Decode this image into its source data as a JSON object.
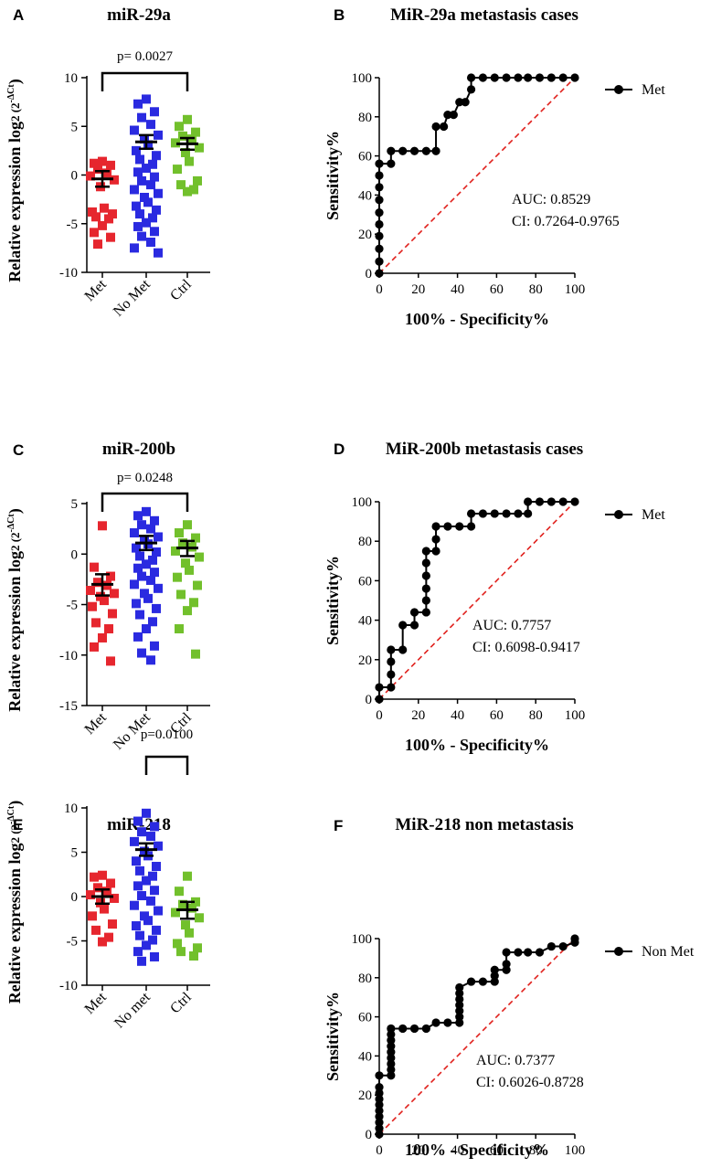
{
  "chart_data": [
    {
      "panel": "A",
      "type": "scatter",
      "title": "miR-29a",
      "ylabel": "Relative expression log",
      "ylabel_sup": "2 (2",
      "ylabel_sup2": "-ΔCt",
      "ylabel_end": ")",
      "ylim": [
        -10,
        10
      ],
      "yticks": [
        "-10",
        "-5",
        "0",
        "5",
        "10"
      ],
      "categories": [
        "Met",
        "No Met",
        "Ctrl"
      ],
      "colors": [
        "#e6262e",
        "#2a2ae0",
        "#72c02c"
      ],
      "means": [
        -0.4,
        3.4,
        3.2
      ],
      "sem_low": [
        -1.2,
        2.7,
        2.6
      ],
      "sem_high": [
        0.4,
        4.1,
        3.8
      ],
      "points": [
        [
          1.4,
          1.2,
          1.0,
          0.6,
          0.2,
          -0.1,
          -0.5,
          -1.2,
          -3.4,
          -3.8,
          -4.0,
          -4.3,
          -4.5,
          -5.2,
          -5.9,
          -6.4,
          -7.1
        ],
        [
          7.8,
          7.3,
          6.5,
          5.9,
          5.2,
          4.6,
          4.1,
          3.7,
          3.1,
          2.5,
          2.0,
          1.6,
          1.1,
          0.7,
          0.3,
          -0.2,
          -0.6,
          -1.0,
          -1.5,
          -1.9,
          -2.3,
          -2.8,
          -3.2,
          -3.6,
          -4.0,
          -4.4,
          -4.9,
          -5.3,
          -5.8,
          -6.3,
          -6.9,
          -7.5,
          -8.0
        ],
        [
          5.7,
          5.0,
          4.4,
          4.0,
          3.7,
          3.3,
          2.8,
          2.3,
          1.4,
          0.6,
          -0.6,
          -1.0,
          -1.5,
          -1.7
        ]
      ],
      "significance": {
        "label": "p= 0.0027",
        "from": 0,
        "to": 2
      }
    },
    {
      "panel": "B",
      "type": "line",
      "title": "MiR-29a metastasis cases",
      "xlabel": "100% - Specificity%",
      "ylabel": "Sensitivity%",
      "xlim": [
        0,
        100
      ],
      "ylim": [
        0,
        100
      ],
      "ticks": [
        "0",
        "20",
        "40",
        "60",
        "80",
        "100"
      ],
      "legend": "Met",
      "auc": "AUC: 0.8529",
      "ci": "CI: 0.7264-0.9765",
      "x": [
        0,
        0,
        0,
        0,
        0,
        0,
        0,
        0,
        0,
        0,
        6,
        6,
        12,
        18,
        24,
        29,
        29,
        33,
        35,
        38,
        41,
        44,
        47,
        47,
        53,
        59,
        65,
        71,
        76,
        82,
        88,
        94,
        100
      ],
      "y": [
        0,
        6,
        12.5,
        19,
        25,
        31,
        37.5,
        44,
        50,
        56,
        56,
        62.5,
        62.5,
        62.5,
        62.5,
        62.5,
        75,
        75,
        81,
        81,
        87.5,
        87.5,
        94,
        100,
        100,
        100,
        100,
        100,
        100,
        100,
        100,
        100,
        100
      ]
    },
    {
      "panel": "C",
      "type": "scatter",
      "title": "miR-200b",
      "ylabel": "Relative expression log",
      "ylabel_sup": "2 (2",
      "ylabel_sup2": "-ΔCt",
      "ylabel_end": ")",
      "ylim": [
        -15,
        5
      ],
      "yticks": [
        "-15",
        "-10",
        "-5",
        "0",
        "5"
      ],
      "categories": [
        "Met",
        "No Met",
        "Ctrl"
      ],
      "colors": [
        "#e6262e",
        "#2a2ae0",
        "#72c02c"
      ],
      "means": [
        -3.0,
        1.1,
        0.6
      ],
      "sem_low": [
        -4.1,
        0.4,
        -0.2
      ],
      "sem_high": [
        -2.0,
        1.8,
        1.3
      ],
      "points": [
        [
          2.8,
          -1.3,
          -2.2,
          -2.8,
          -3.1,
          -3.6,
          -3.9,
          -4.2,
          -4.6,
          -5.2,
          -5.9,
          -6.8,
          -7.4,
          -8.3,
          -9.2,
          -10.6
        ],
        [
          4.2,
          3.8,
          3.3,
          2.9,
          2.5,
          2.1,
          1.7,
          1.4,
          1.0,
          0.6,
          0.2,
          -0.2,
          -0.6,
          -1.0,
          -1.4,
          -1.8,
          -2.2,
          -2.6,
          -3.0,
          -3.4,
          -3.9,
          -4.4,
          -4.9,
          -5.4,
          -6.0,
          -6.7,
          -7.4,
          -8.2,
          -9.1,
          -9.8,
          -10.5
        ],
        [
          2.9,
          2.1,
          1.6,
          1.1,
          0.7,
          0.3,
          -0.3,
          -0.9,
          -1.6,
          -2.3,
          -3.1,
          -4.0,
          -4.8,
          -5.6,
          -7.4,
          -9.9
        ]
      ],
      "significance": {
        "label": "p= 0.0248",
        "from": 0,
        "to": 2
      }
    },
    {
      "panel": "D",
      "type": "line",
      "title": "MiR-200b metastasis cases",
      "xlabel": "100% - Specificity%",
      "ylabel": "Sensitivity%",
      "xlim": [
        0,
        100
      ],
      "ylim": [
        0,
        100
      ],
      "ticks": [
        "0",
        "20",
        "40",
        "60",
        "80",
        "100"
      ],
      "legend": "Met",
      "auc": "AUC: 0.7757",
      "ci": "CI: 0.6098-0.9417",
      "x": [
        0,
        0,
        6,
        6,
        6,
        6,
        12,
        12,
        18,
        18,
        24,
        24,
        24,
        24,
        24,
        24,
        29,
        29,
        29,
        35,
        41,
        47,
        47,
        53,
        59,
        65,
        71,
        76,
        76,
        82,
        88,
        94,
        100
      ],
      "y": [
        0,
        6,
        6,
        12.5,
        19,
        25,
        25,
        37.5,
        37.5,
        44,
        44,
        50,
        56,
        62.5,
        69,
        75,
        75,
        81,
        87.5,
        87.5,
        87.5,
        87.5,
        94,
        94,
        94,
        94,
        94,
        94,
        100,
        100,
        100,
        100,
        100
      ]
    },
    {
      "panel": "E",
      "type": "scatter",
      "title": "miR-218",
      "ylabel": "Relative expression log",
      "ylabel_sup": "2 (2",
      "ylabel_sup2": "-ΔCt",
      "ylabel_end": ")",
      "ylim": [
        -10,
        10
      ],
      "yticks": [
        "-10",
        "-5",
        "0",
        "5",
        "10"
      ],
      "categories": [
        "Met",
        "No met",
        "Ctrl"
      ],
      "colors": [
        "#e6262e",
        "#2a2ae0",
        "#72c02c"
      ],
      "means": [
        0.0,
        5.3,
        -1.5
      ],
      "sem_low": [
        -0.8,
        4.6,
        -2.5
      ],
      "sem_high": [
        0.8,
        6.0,
        -0.6
      ],
      "points": [
        [
          2.4,
          2.2,
          1.5,
          1.0,
          0.6,
          0.2,
          -0.2,
          -0.7,
          -1.4,
          -2.2,
          -3.1,
          -3.8,
          -4.6,
          -5.1
        ],
        [
          9.4,
          8.5,
          7.9,
          7.3,
          6.8,
          6.2,
          5.7,
          5.1,
          4.6,
          4.0,
          3.4,
          2.9,
          2.3,
          1.8,
          1.2,
          0.7,
          0.1,
          -0.5,
          -1.0,
          -1.6,
          -2.2,
          -2.7,
          -3.3,
          -3.8,
          -4.4,
          -4.9,
          -5.5,
          -6.2,
          -6.8,
          -7.3
        ],
        [
          2.3,
          0.6,
          -0.6,
          -0.9,
          -1.3,
          -1.8,
          -2.4,
          -3.2,
          -4.1,
          -5.3,
          -5.8,
          -6.2,
          -6.7
        ]
      ],
      "significance": {
        "label": "p=0.0100",
        "from": 1,
        "to": 2
      }
    },
    {
      "panel": "F",
      "type": "line",
      "title": "MiR-218 non metastasis",
      "xlabel": "100% - Specificity%",
      "ylabel": "Sensitivity%",
      "xlim": [
        0,
        100
      ],
      "ylim": [
        0,
        100
      ],
      "ticks": [
        "0",
        "20",
        "40",
        "60",
        "80",
        "100"
      ],
      "legend": "Non Met",
      "auc": "AUC: 0.7377",
      "ci": "CI: 0.6026-0.8728",
      "x": [
        0,
        0,
        0,
        0,
        0,
        0,
        0,
        0,
        0,
        0,
        6,
        6,
        6,
        6,
        6,
        6,
        6,
        6,
        6,
        12,
        18,
        24,
        29,
        35,
        41,
        41,
        41,
        41,
        41,
        41,
        41,
        47,
        53,
        59,
        59,
        59,
        65,
        65,
        65,
        71,
        76,
        82,
        88,
        94,
        100,
        100
      ],
      "y": [
        0,
        3,
        6,
        9,
        12,
        15,
        18,
        21,
        24,
        30,
        30,
        33,
        36,
        39,
        42,
        45,
        48,
        51,
        54,
        54,
        54,
        54,
        57,
        57,
        57,
        60,
        63,
        66,
        69,
        72,
        75,
        78,
        78,
        78,
        81,
        84,
        84,
        87,
        93,
        93,
        93,
        93,
        96,
        96,
        98,
        100
      ]
    }
  ]
}
